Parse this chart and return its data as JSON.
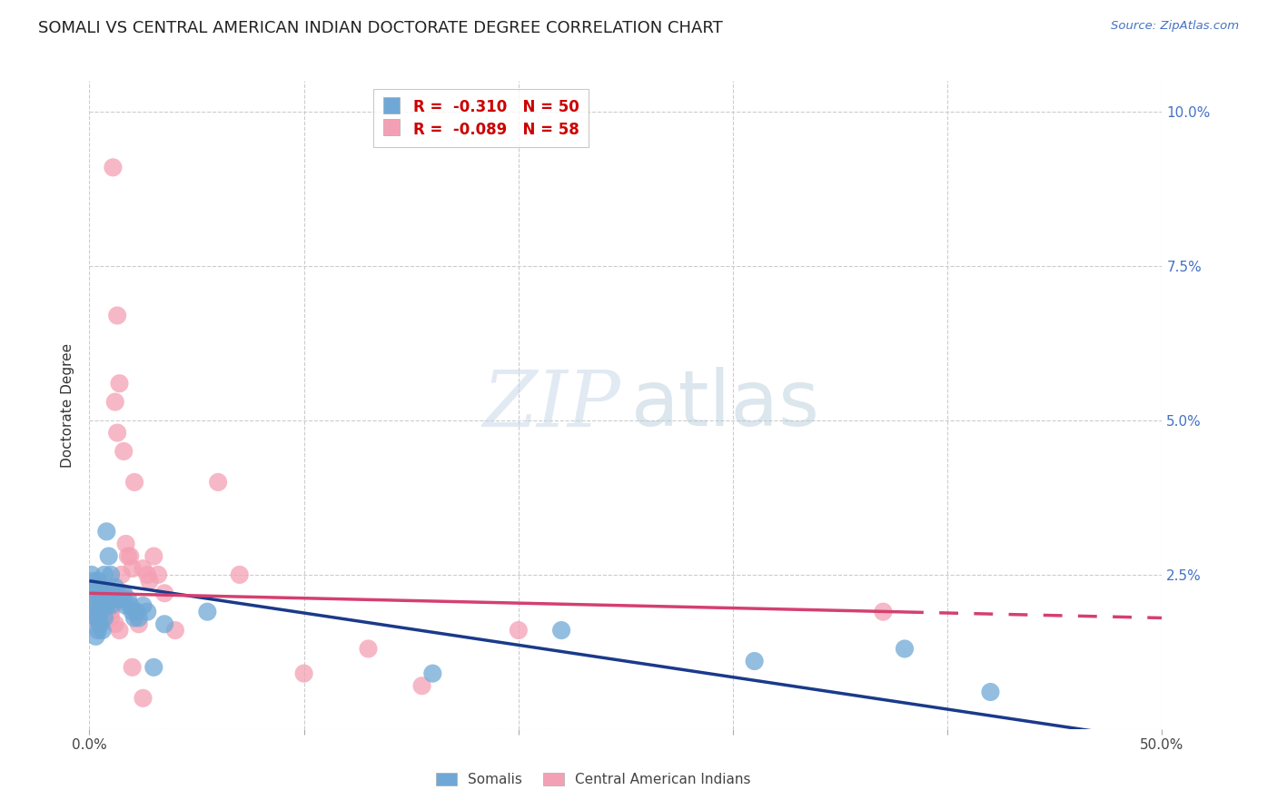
{
  "title": "SOMALI VS CENTRAL AMERICAN INDIAN DOCTORATE DEGREE CORRELATION CHART",
  "source": "Source: ZipAtlas.com",
  "ylabel": "Doctorate Degree",
  "xlim": [
    0.0,
    0.5
  ],
  "ylim": [
    0.0,
    0.105
  ],
  "yticks": [
    0.0,
    0.025,
    0.05,
    0.075,
    0.1
  ],
  "ytick_labels": [
    "",
    "2.5%",
    "5.0%",
    "7.5%",
    "10.0%"
  ],
  "xticks": [
    0.0,
    0.1,
    0.2,
    0.3,
    0.4,
    0.5
  ],
  "xtick_labels": [
    "0.0%",
    "",
    "",
    "",
    "",
    "50.0%"
  ],
  "somali_color": "#6fa8d6",
  "central_color": "#f4a0b4",
  "trend_somali_color": "#1a3a8a",
  "trend_central_color": "#d44070",
  "R_somali": -0.31,
  "N_somali": 50,
  "R_central": -0.089,
  "N_central": 58,
  "bg_color": "#ffffff",
  "grid_color": "#cccccc",
  "somali_x": [
    0.001,
    0.002,
    0.002,
    0.003,
    0.003,
    0.003,
    0.003,
    0.004,
    0.004,
    0.004,
    0.004,
    0.004,
    0.005,
    0.005,
    0.005,
    0.005,
    0.006,
    0.006,
    0.006,
    0.007,
    0.007,
    0.007,
    0.008,
    0.008,
    0.009,
    0.01,
    0.01,
    0.011,
    0.012,
    0.013,
    0.014,
    0.015,
    0.016,
    0.017,
    0.018,
    0.019,
    0.02,
    0.021,
    0.022,
    0.023,
    0.025,
    0.027,
    0.03,
    0.035,
    0.055,
    0.16,
    0.22,
    0.31,
    0.38,
    0.42
  ],
  "somali_y": [
    0.025,
    0.022,
    0.024,
    0.02,
    0.023,
    0.018,
    0.015,
    0.024,
    0.022,
    0.02,
    0.018,
    0.016,
    0.023,
    0.021,
    0.019,
    0.017,
    0.022,
    0.02,
    0.016,
    0.02,
    0.018,
    0.025,
    0.032,
    0.02,
    0.028,
    0.025,
    0.02,
    0.022,
    0.023,
    0.022,
    0.021,
    0.021,
    0.022,
    0.02,
    0.021,
    0.02,
    0.019,
    0.018,
    0.019,
    0.018,
    0.02,
    0.019,
    0.01,
    0.017,
    0.019,
    0.009,
    0.016,
    0.011,
    0.013,
    0.006
  ],
  "central_x": [
    0.001,
    0.002,
    0.002,
    0.003,
    0.003,
    0.003,
    0.004,
    0.004,
    0.004,
    0.005,
    0.005,
    0.005,
    0.006,
    0.006,
    0.007,
    0.008,
    0.009,
    0.01,
    0.01,
    0.011,
    0.011,
    0.012,
    0.013,
    0.013,
    0.014,
    0.015,
    0.015,
    0.016,
    0.017,
    0.018,
    0.019,
    0.02,
    0.021,
    0.022,
    0.023,
    0.025,
    0.027,
    0.028,
    0.03,
    0.032,
    0.035,
    0.04,
    0.06,
    0.07,
    0.1,
    0.13,
    0.155,
    0.2,
    0.37,
    0.003,
    0.004,
    0.006,
    0.008,
    0.01,
    0.012,
    0.014,
    0.02,
    0.025
  ],
  "central_y": [
    0.02,
    0.019,
    0.022,
    0.018,
    0.02,
    0.022,
    0.017,
    0.021,
    0.023,
    0.019,
    0.021,
    0.023,
    0.018,
    0.02,
    0.022,
    0.019,
    0.022,
    0.021,
    0.018,
    0.091,
    0.02,
    0.053,
    0.048,
    0.067,
    0.056,
    0.022,
    0.025,
    0.045,
    0.03,
    0.028,
    0.028,
    0.026,
    0.04,
    0.019,
    0.017,
    0.026,
    0.025,
    0.024,
    0.028,
    0.025,
    0.022,
    0.016,
    0.04,
    0.025,
    0.009,
    0.013,
    0.007,
    0.016,
    0.019,
    0.021,
    0.019,
    0.02,
    0.018,
    0.019,
    0.017,
    0.016,
    0.01,
    0.005
  ],
  "trend_somali_x_start": 0.0,
  "trend_somali_x_end": 0.5,
  "trend_somali_y_start": 0.024,
  "trend_somali_y_end": -0.002,
  "trend_central_x_start": 0.0,
  "trend_central_x_end": 0.5,
  "trend_central_y_start": 0.022,
  "trend_central_y_end": 0.018,
  "trend_central_solid_end": 0.38,
  "watermark_zip": "ZIP",
  "watermark_atlas": "atlas"
}
